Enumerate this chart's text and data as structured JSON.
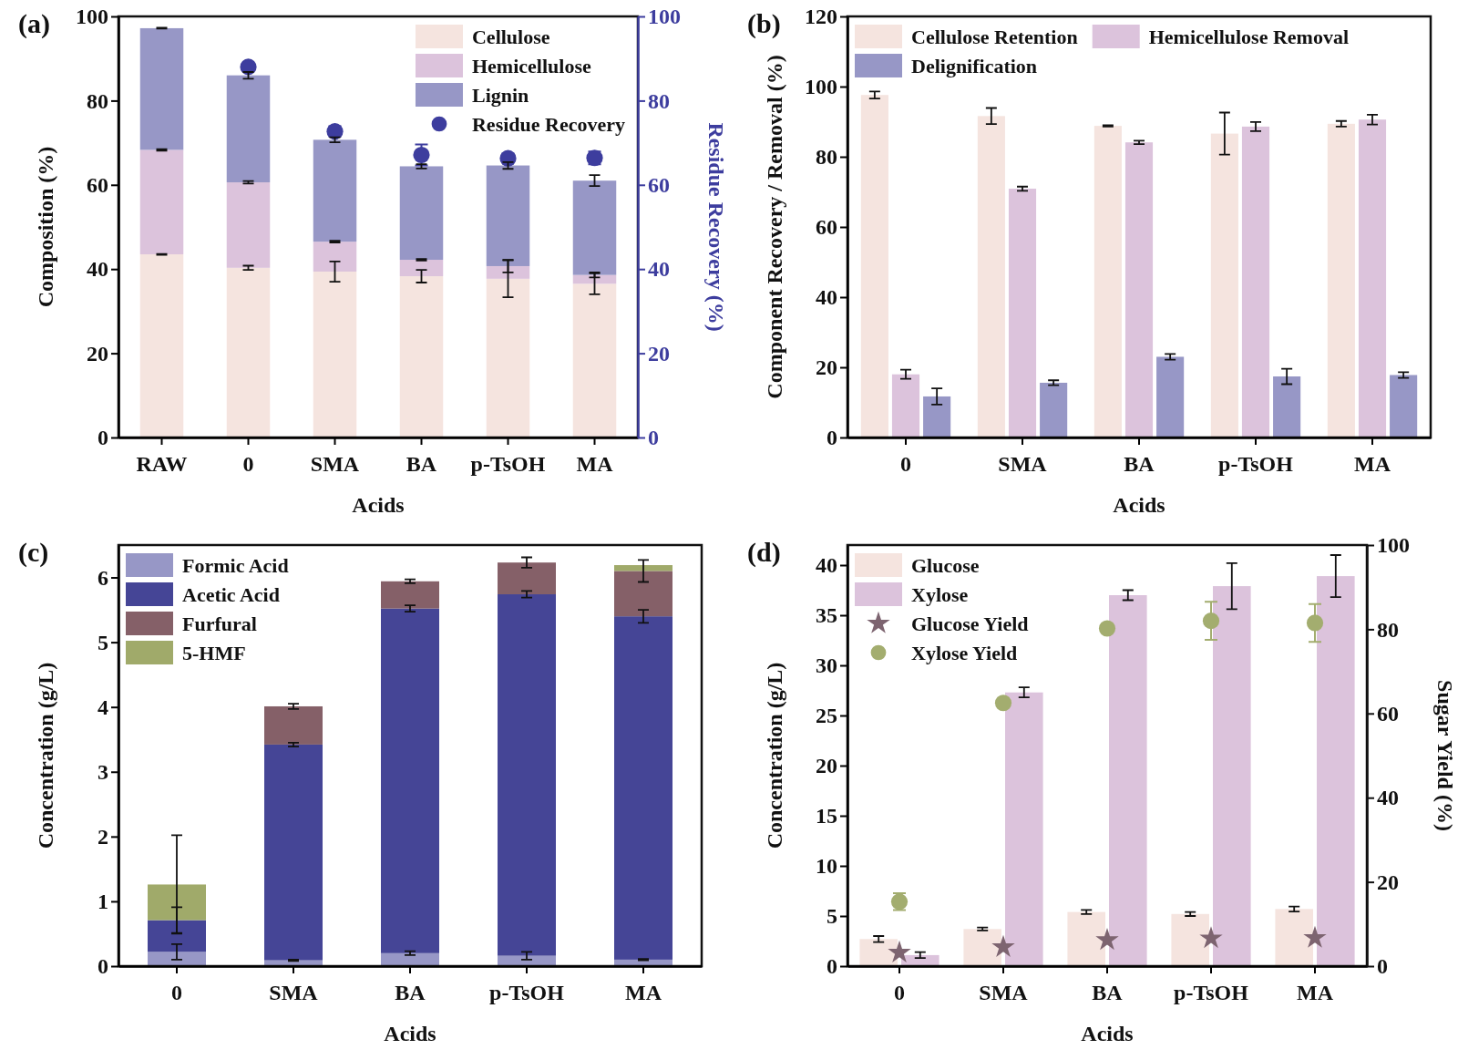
{
  "chart_data": [
    {
      "type": "bar",
      "annotations": [
        "(a)"
      ],
      "xlabel": "Acids",
      "ylabel": "Composition (%)",
      "y2label": "Residue Recovery (%)",
      "categories": [
        "RAW",
        "0",
        "SMA",
        "BA",
        "p-TsOH",
        "MA"
      ],
      "stacked": true,
      "ylim": [
        0,
        100
      ],
      "yticks": [
        0,
        20,
        40,
        60,
        80,
        100
      ],
      "y2lim": [
        0,
        100
      ],
      "y2ticks": [
        0,
        20,
        40,
        60,
        80,
        100
      ],
      "legend": "top right",
      "series": [
        {
          "name": "Cellulose",
          "color": "#f5e4df",
          "values": [
            43.5,
            40.3,
            39.4,
            38.3,
            37.7,
            36.5
          ],
          "errors": [
            0.1,
            0.5,
            2.4,
            1.5,
            4.4,
            2.5
          ]
        },
        {
          "name": "Hemicellulose",
          "color": "#dcc3dc",
          "values": [
            24.8,
            20.3,
            7.1,
            3.9,
            3.0,
            2.1
          ],
          "errors": [
            0.2,
            0.3,
            0.2,
            0.2,
            1.5,
            0.6
          ]
        },
        {
          "name": "Lignin",
          "color": "#9797c6",
          "values": [
            28.9,
            25.4,
            24.2,
            22.2,
            23.9,
            22.4
          ],
          "errors": [
            0.1,
            0.8,
            0.6,
            0.5,
            0.8,
            1.3
          ]
        },
        {
          "name": "Residue Recovery",
          "type": "scatter",
          "axis": "y2",
          "marker": "circle",
          "color": "#3d3d9e",
          "x": [
            "0",
            "SMA",
            "BA",
            "p-TsOH",
            "MA"
          ],
          "values": [
            88.0,
            72.7,
            67.1,
            66.3,
            66.4
          ],
          "errors": [
            0.8,
            1.2,
            2.5,
            1.0,
            1.5
          ]
        }
      ]
    },
    {
      "type": "bar",
      "annotations": [
        "(b)"
      ],
      "xlabel": "Acids",
      "ylabel": "Component Recovery / Removal (%)",
      "categories": [
        "0",
        "SMA",
        "BA",
        "p-TsOH",
        "MA"
      ],
      "ylim": [
        0,
        120
      ],
      "yticks": [
        0,
        20,
        40,
        60,
        80,
        100,
        120
      ],
      "legend": "top",
      "series": [
        {
          "name": "Cellulose Retention",
          "color": "#f5e4df",
          "values": [
            97.6,
            91.6,
            88.8,
            86.6,
            89.4
          ],
          "errors": [
            1.0,
            2.3,
            0.2,
            6.0,
            0.8
          ]
        },
        {
          "name": "Hemicellulose Removal",
          "color": "#dcc3dc",
          "values": [
            18.0,
            70.9,
            84.1,
            88.6,
            90.6
          ],
          "errors": [
            1.3,
            0.6,
            0.5,
            1.3,
            1.4
          ]
        },
        {
          "name": "Delignification",
          "color": "#9797c6",
          "values": [
            11.7,
            15.6,
            23.0,
            17.4,
            17.8
          ],
          "errors": [
            2.3,
            0.7,
            0.8,
            2.2,
            0.8
          ]
        }
      ]
    },
    {
      "type": "bar",
      "annotations": [
        "(c)"
      ],
      "xlabel": "Acids",
      "ylabel": "Concentration (g/L)",
      "categories": [
        "0",
        "SMA",
        "BA",
        "p-TsOH",
        "MA"
      ],
      "stacked": true,
      "ylim": [
        0,
        6.5
      ],
      "yticks": [
        0,
        1,
        2,
        3,
        4,
        5,
        6
      ],
      "legend": "top left",
      "series": [
        {
          "name": "Formic Acid",
          "color": "#9797c6",
          "values": [
            0.22,
            0.09,
            0.2,
            0.16,
            0.1
          ],
          "errors": [
            0.12,
            0.01,
            0.03,
            0.06,
            0.01
          ]
        },
        {
          "name": "Acetic Acid",
          "color": "#454596",
          "values": [
            0.49,
            3.33,
            5.32,
            5.58,
            5.3
          ],
          "errors": [
            0.2,
            0.03,
            0.05,
            0.05,
            0.1
          ]
        },
        {
          "name": "Furfural",
          "color": "#856068",
          "values": [
            null,
            0.59,
            0.42,
            0.49,
            0.7
          ],
          "errors": [
            null,
            0.04,
            0.03,
            0.08,
            0.17
          ]
        },
        {
          "name": "5-HMF",
          "color": "#a0aa6a",
          "values": [
            0.55,
            null,
            null,
            null,
            0.09
          ],
          "errors": [
            0.76,
            null,
            null,
            null,
            null
          ]
        }
      ]
    },
    {
      "type": "bar",
      "annotations": [
        "(d)"
      ],
      "xlabel": "Acids",
      "ylabel": "Concentration (g/L)",
      "y2label": "Sugar Yield (%)",
      "categories": [
        "0",
        "SMA",
        "BA",
        "p-TsOH",
        "MA"
      ],
      "ylim": [
        0,
        42
      ],
      "yticks": [
        0,
        5,
        10,
        15,
        20,
        25,
        30,
        35,
        40
      ],
      "y2lim": [
        0,
        100
      ],
      "y2ticks": [
        0,
        20,
        40,
        60,
        80,
        100
      ],
      "legend": "top left",
      "series": [
        {
          "name": "Glucose",
          "color": "#f5e4df",
          "values": [
            2.7,
            3.7,
            5.4,
            5.2,
            5.7
          ],
          "errors": [
            0.3,
            0.15,
            0.2,
            0.2,
            0.25
          ]
        },
        {
          "name": "Xylose",
          "color": "#dcc3dc",
          "values": [
            1.1,
            27.3,
            37.0,
            37.9,
            38.9
          ],
          "errors": [
            0.3,
            0.5,
            0.5,
            2.3,
            2.1
          ]
        },
        {
          "name": "Glucose Yield",
          "type": "scatter",
          "axis": "y2",
          "marker": "star",
          "color": "#7d6470",
          "x": [
            "0",
            "SMA",
            "BA",
            "p-TsOH",
            "MA"
          ],
          "values": [
            3.2,
            4.5,
            6.2,
            6.6,
            6.7
          ]
        },
        {
          "name": "Xylose Yield",
          "type": "scatter",
          "axis": "y2",
          "marker": "circle",
          "color": "#a3ad6f",
          "x": [
            "0",
            "SMA",
            "BA",
            "p-TsOH",
            "MA"
          ],
          "values": [
            15.3,
            62.5,
            80.2,
            82.0,
            81.5
          ],
          "errors": [
            2.0,
            null,
            null,
            4.5,
            4.5
          ]
        }
      ]
    }
  ]
}
